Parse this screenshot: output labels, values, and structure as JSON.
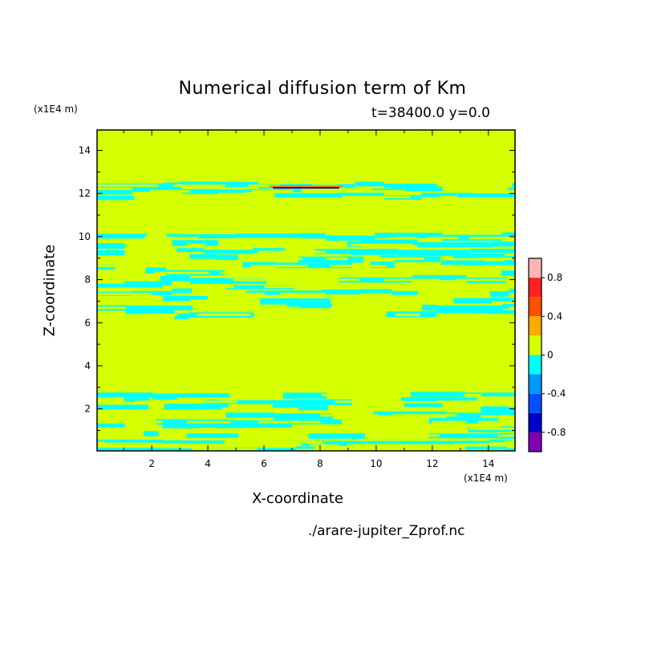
{
  "chart_data": {
    "type": "heatmap",
    "title": "Numerical diffusion term of Km",
    "subtitle": "t=38400.0 y=0.0",
    "xlabel": "X-coordinate",
    "ylabel": "Z-coordinate",
    "x_unit": "(x1E4 m)",
    "y_unit": "(x1E4 m)",
    "source": "./arare-jupiter_Zprof.nc",
    "xlim": [
      0.05,
      14.95
    ],
    "ylim": [
      0.05,
      14.95
    ],
    "x_ticks": [
      2,
      4,
      6,
      8,
      10,
      12,
      14
    ],
    "y_ticks": [
      2,
      4,
      6,
      8,
      10,
      12,
      14
    ],
    "x_tick_labels": [
      "2",
      "4",
      "6",
      "8",
      "10",
      "12",
      "14"
    ],
    "y_tick_labels": [
      "2",
      "4",
      "6",
      "8",
      "10",
      "12",
      "14"
    ],
    "background_level_color": "#d4ff00",
    "negative_band_color": "#00ffff",
    "colorbar": {
      "levels": [
        -1.0,
        -0.8,
        -0.6,
        -0.4,
        -0.2,
        0.0,
        0.2,
        0.4,
        0.6,
        0.8,
        1.0
      ],
      "colors": [
        "#8000b0",
        "#0000c8",
        "#0050ff",
        "#0096ff",
        "#00ffff",
        "#d4ff00",
        "#ffaa00",
        "#ff5000",
        "#ff2020",
        "#ffb4b4"
      ],
      "tick_values": [
        -0.8,
        -0.4,
        0,
        0.4,
        0.8
      ],
      "tick_labels": [
        "-0.8",
        "-0.4",
        "0",
        "0.4",
        "0.8"
      ]
    },
    "negative_regions": [
      {
        "z_range": [
          0.05,
          0.55
        ],
        "description": "near-surface band"
      },
      {
        "z_range": [
          0.6,
          2.8
        ],
        "description": "lower layered bands"
      },
      {
        "z_range": [
          6.2,
          10.1
        ],
        "description": "middle layered bands"
      },
      {
        "z_range": [
          11.7,
          12.5
        ],
        "description": "upper bands"
      }
    ],
    "feature_line": {
      "x_range": [
        6.2,
        8.8
      ],
      "z": 12.3,
      "colors": [
        "#ff8000",
        "#0000c8"
      ]
    }
  }
}
